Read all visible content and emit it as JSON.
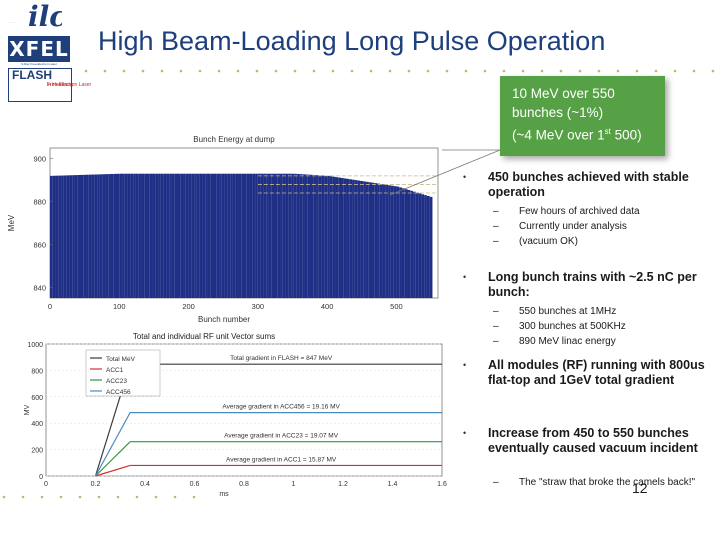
{
  "title": "High Beam-Loading Long Pulse Operation",
  "logos": {
    "ilc": "ilc",
    "xfel": "XFEL",
    "xfel_sub": "X-Ray Free-Electron Laser",
    "flash": "FLASH",
    "flash_sub1": "Free-Electron Laser",
    "flash_sub2": "in Hamburg"
  },
  "callout": {
    "line1": "10 MeV over 550",
    "line2": "bunches (~1%)",
    "line3_pre": "(~4 MeV over 1",
    "line3_sup": "st",
    "line3_post": " 500)"
  },
  "bullets": [
    {
      "text": "450 bunches achieved with stable operation",
      "subs": [
        "Few hours of archived data",
        "Currently under analysis",
        "(vacuum OK)"
      ]
    },
    {
      "text": "Long bunch trains with ~2.5 nC per bunch:",
      "subs": [
        "550 bunches at 1MHz",
        "300 bunches at 500KHz",
        "890 MeV linac energy"
      ]
    },
    {
      "text": "All modules (RF) running with 800us flat-top and 1GeV total gradient",
      "subs": []
    },
    {
      "text": "Increase from 450 to 550 bunches eventually caused vacuum incident",
      "subs": [
        "The \"straw that broke the camels back!\""
      ]
    }
  ],
  "bullet_dash": "–",
  "page_number": "12",
  "colors": {
    "title": "#1d3f7c",
    "callout": "#56a146",
    "bars": "#1f2f86",
    "accent": "#1e3f7a"
  },
  "chart_data": [
    {
      "type": "bar",
      "title": "Bunch Energy at dump",
      "xlabel": "Bunch number",
      "ylabel": "MeV",
      "xlim": [
        0,
        560
      ],
      "ylim": [
        835,
        905
      ],
      "xticks": [
        "0",
        "100",
        "200",
        "300",
        "400",
        "500"
      ],
      "yticks": [
        "840",
        "860",
        "880",
        "900"
      ],
      "series": [
        {
          "x": [
            0,
            100,
            200,
            300,
            350,
            400,
            420,
            440,
            460,
            480,
            500,
            520,
            540,
            550
          ],
          "values": [
            892,
            893,
            893,
            893,
            893,
            892,
            891,
            890,
            889,
            888,
            887,
            885,
            883,
            882
          ]
        }
      ],
      "reference_lines": [
        892,
        888,
        884
      ]
    },
    {
      "type": "line",
      "title": "Total and individual RF unit Vector sums",
      "xlabel": "ms",
      "ylabel": "MV",
      "xlim": [
        0,
        1.6
      ],
      "ylim": [
        0,
        1000
      ],
      "xticks": [
        "0",
        "0.2",
        "0.4",
        "0.6",
        "0.8",
        "1",
        "1.2",
        "1.4",
        "1.6"
      ],
      "yticks": [
        "0",
        "200",
        "400",
        "600",
        "800",
        "1000"
      ],
      "series": [
        {
          "name": "Total MeV",
          "color": "#3a3a3a",
          "x": [
            0.2,
            0.34,
            0.8,
            1.2,
            1.6
          ],
          "values": [
            0,
            847,
            847,
            847,
            847
          ]
        },
        {
          "name": "ACC1",
          "color": "#d03030",
          "x": [
            0.2,
            0.34,
            0.8,
            1.2,
            1.6
          ],
          "values": [
            0,
            80,
            80,
            80,
            80
          ]
        },
        {
          "name": "ACC23",
          "color": "#2b9a3a",
          "x": [
            0.2,
            0.34,
            0.8,
            1.2,
            1.6
          ],
          "values": [
            0,
            260,
            260,
            260,
            260
          ]
        },
        {
          "name": "ACC456",
          "color": "#4a8bc0",
          "x": [
            0.2,
            0.34,
            0.8,
            1.2,
            1.6
          ],
          "values": [
            0,
            480,
            480,
            480,
            480
          ]
        }
      ],
      "annotations": [
        "Total gradient in FLASH = 847 MeV",
        "Average gradient in ACC456 = 19.16 MV",
        "Average gradient in ACC23 = 19.07 MV",
        "Average gradient in ACC1 = 15.87 MV"
      ]
    }
  ]
}
